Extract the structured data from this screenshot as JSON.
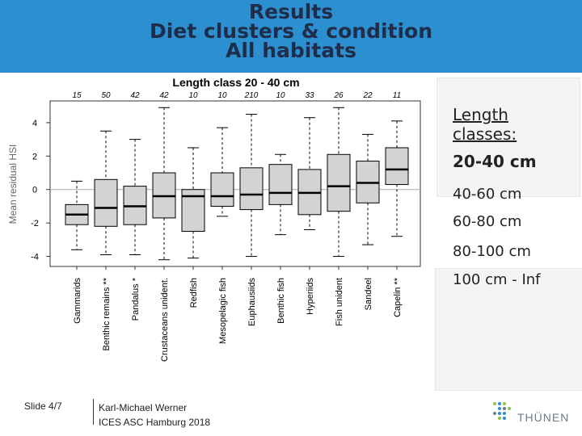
{
  "header": {
    "title_line1": "Results",
    "title_line2": "Diet clusters & condition",
    "title_line3": "All habitats"
  },
  "colors": {
    "header_bg": "#2b8fd0",
    "title": "#1f2d4a",
    "box_fill": "#d3d3d3",
    "reference_line": "#aaaaaa"
  },
  "legend": {
    "title_line1": "Length",
    "title_line2": "classes:",
    "items": [
      "20-40 cm",
      "40-60 cm",
      "60-80 cm",
      "80-100 cm",
      "100 cm - Inf"
    ],
    "selected_index": 0
  },
  "footer": {
    "slide": "Slide 4/7",
    "author": "Karl-Michael Werner",
    "event": "ICES ASC Hamburg 2018",
    "logo_text": "THÜNEN"
  },
  "chart_data": {
    "type": "box",
    "title": "Length class 20 - 40 cm",
    "ylabel": "Mean residual HSI",
    "xlabel": "",
    "ylim": [
      -4.6,
      5.3
    ],
    "yticks": [
      -4,
      -2,
      0,
      2,
      4
    ],
    "reference_line": 0,
    "categories": [
      "Gammarids",
      "Benthic remains **",
      "Pandalus *",
      "Crustaceans unident.",
      "Redfish",
      "Mesopelagic fish",
      "Euphausiids",
      "Benthic fish",
      "Hyperiids",
      "Fish unident",
      "Sandeel",
      "Capelin **"
    ],
    "counts": [
      "15",
      "50",
      "42",
      "42",
      "10",
      "10",
      "210",
      "10",
      "33",
      "26",
      "22",
      "11"
    ],
    "boxes": [
      {
        "min": -3.6,
        "q1": -2.1,
        "median": -1.5,
        "q3": -0.9,
        "max": 0.5
      },
      {
        "min": -3.9,
        "q1": -2.2,
        "median": -1.1,
        "q3": 0.6,
        "max": 3.5
      },
      {
        "min": -3.9,
        "q1": -2.1,
        "median": -1.0,
        "q3": 0.2,
        "max": 3.0
      },
      {
        "min": -4.2,
        "q1": -1.7,
        "median": -0.4,
        "q3": 1.0,
        "max": 4.9
      },
      {
        "min": -4.1,
        "q1": -2.5,
        "median": -0.4,
        "q3": 0.0,
        "max": 2.5
      },
      {
        "min": -1.6,
        "q1": -1.0,
        "median": -0.4,
        "q3": 1.0,
        "max": 3.7
      },
      {
        "min": -4.0,
        "q1": -1.2,
        "median": -0.3,
        "q3": 1.3,
        "max": 4.5
      },
      {
        "min": -2.7,
        "q1": -0.9,
        "median": -0.2,
        "q3": 1.5,
        "max": 2.1
      },
      {
        "min": -2.4,
        "q1": -1.5,
        "median": -0.2,
        "q3": 1.2,
        "max": 4.3
      },
      {
        "min": -4.0,
        "q1": -1.3,
        "median": 0.2,
        "q3": 2.1,
        "max": 4.9
      },
      {
        "min": -3.3,
        "q1": -0.8,
        "median": 0.4,
        "q3": 1.7,
        "max": 3.3
      },
      {
        "min": -2.8,
        "q1": 0.3,
        "median": 1.2,
        "q3": 2.5,
        "max": 4.1
      }
    ]
  }
}
